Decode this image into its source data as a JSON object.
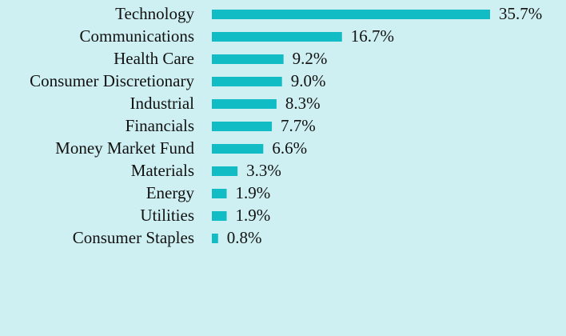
{
  "chart_data": {
    "type": "bar",
    "orientation": "horizontal",
    "title": "",
    "xlabel": "",
    "ylabel": "",
    "categories": [
      "Technology",
      "Communications",
      "Health Care",
      "Consumer Discretionary",
      "Industrial",
      "Financials",
      "Money Market Fund",
      "Materials",
      "Energy",
      "Utilities",
      "Consumer Staples"
    ],
    "values": [
      35.7,
      16.7,
      9.2,
      9.0,
      8.3,
      7.7,
      6.6,
      3.3,
      1.9,
      1.9,
      0.8
    ],
    "value_labels": [
      "35.7%",
      "16.7%",
      "9.2%",
      "9.0%",
      "8.3%",
      "7.7%",
      "6.6%",
      "3.3%",
      "1.9%",
      "1.9%",
      "0.8%"
    ],
    "unit": "%",
    "xlim": [
      0,
      35.7
    ],
    "grid": false,
    "legend": "none"
  },
  "colors": {
    "background": "#CFF0F2",
    "bar": "#12BCC4",
    "text": "#111111"
  }
}
